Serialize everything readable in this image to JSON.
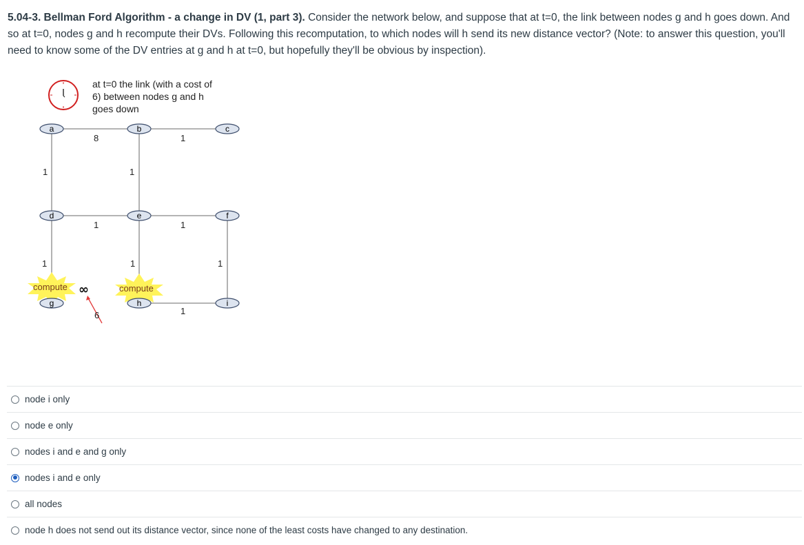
{
  "question": {
    "title": "5.04-3. Bellman Ford Algorithm - a change in DV (1, part 3).",
    "body": " Consider the network below, and suppose that at t=0, the link between nodes g and h goes down. And so at t=0, nodes g and h recompute their DVs. Following this recomputation, to which nodes will h send its new distance vector? (Note: to answer this question, you'll need to know some of the DV entries at g and h at t=0, but hopefully they'll be obvious by inspection)."
  },
  "diagram": {
    "caption_lines": [
      "at t=0  the link (with a cost of",
      "6)  between nodes g and h",
      "goes down"
    ],
    "nodes": [
      "a",
      "b",
      "c",
      "d",
      "e",
      "f",
      "g",
      "h",
      "i"
    ],
    "edge_costs": {
      "a_b": "8",
      "b_c": "1",
      "a_d": "1",
      "b_e": "1",
      "d_e": "1",
      "e_f": "1",
      "d_g": "1",
      "e_h": "1",
      "f_i": "1",
      "h_i": "1",
      "g_h_old": "6",
      "g_h_new": "∞"
    },
    "compute_label": "compute",
    "colors": {
      "burst": "#fff35a",
      "clock": "#d11f1f",
      "strike": "#e23b3b"
    }
  },
  "answers": [
    {
      "label": "node i only",
      "selected": false
    },
    {
      "label": "node e only",
      "selected": false
    },
    {
      "label": "nodes i and e and g only",
      "selected": false
    },
    {
      "label": "nodes i and e only",
      "selected": true
    },
    {
      "label": "all nodes",
      "selected": false
    },
    {
      "label": "node h does not send out its distance vector, since none of the least costs have changed to any destination.",
      "selected": false
    }
  ]
}
